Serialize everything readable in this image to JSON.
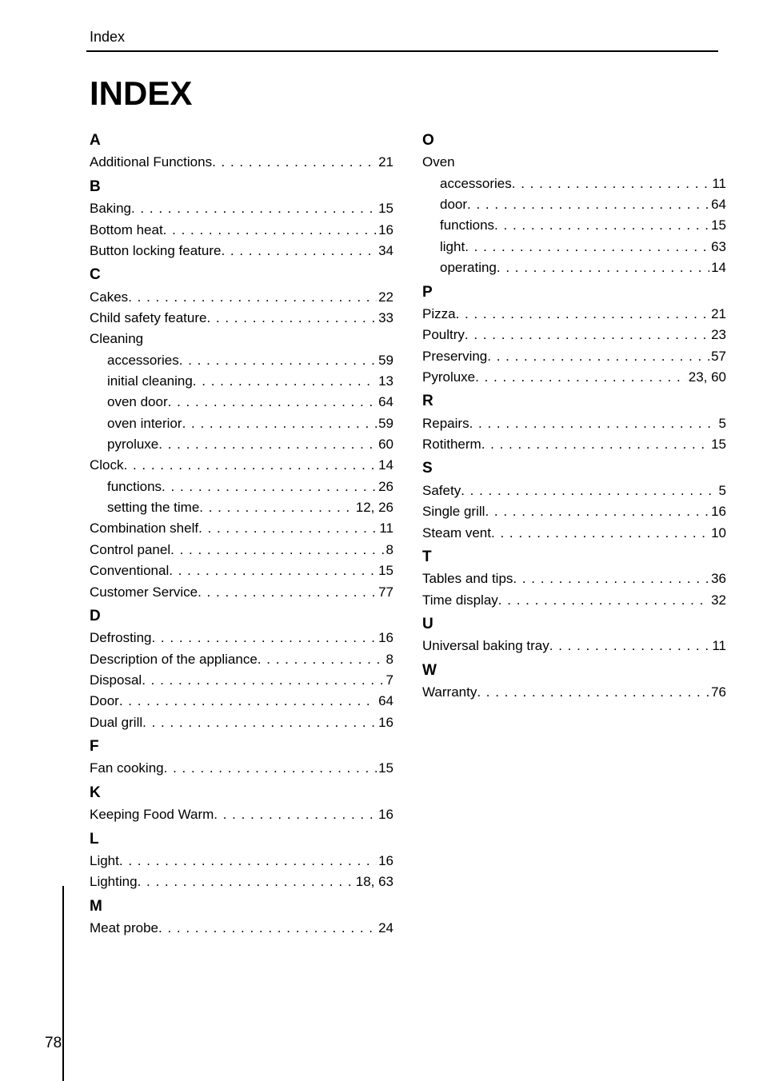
{
  "running_head": "Index",
  "title": "INDEX",
  "page_number": "78",
  "left": {
    "A": {
      "letter": "A",
      "items": [
        {
          "label": "Additional Functions",
          "page": "21"
        }
      ]
    },
    "B": {
      "letter": "B",
      "items": [
        {
          "label": "Baking",
          "page": "15"
        },
        {
          "label": "Bottom heat",
          "page": "16"
        },
        {
          "label": "Button locking feature",
          "page": "34"
        }
      ]
    },
    "C": {
      "letter": "C",
      "items": [
        {
          "label": "Cakes",
          "page": "22"
        },
        {
          "label": "Child safety feature",
          "page": "33"
        },
        {
          "label": "Cleaning",
          "page": "",
          "nodots": true
        },
        {
          "label": "accessories",
          "page": "59",
          "indent": true
        },
        {
          "label": "initial cleaning",
          "page": "13",
          "indent": true
        },
        {
          "label": "oven door",
          "page": "64",
          "indent": true
        },
        {
          "label": "oven interior",
          "page": "59",
          "indent": true
        },
        {
          "label": "pyroluxe",
          "page": "60",
          "indent": true
        },
        {
          "label": "Clock",
          "page": "14"
        },
        {
          "label": "functions",
          "page": "26",
          "indent": true
        },
        {
          "label": "setting the time",
          "page": "12, 26",
          "indent": true
        },
        {
          "label": "Combination shelf",
          "page": "11"
        },
        {
          "label": "Control panel",
          "page": "8"
        },
        {
          "label": "Conventional",
          "page": "15"
        },
        {
          "label": "Customer Service",
          "page": "77"
        }
      ]
    },
    "D": {
      "letter": "D",
      "items": [
        {
          "label": "Defrosting",
          "page": "16"
        },
        {
          "label": "Description of the appliance",
          "page": "8"
        },
        {
          "label": "Disposal",
          "page": "7"
        },
        {
          "label": "Door",
          "page": "64"
        },
        {
          "label": "Dual grill",
          "page": "16"
        }
      ]
    },
    "F": {
      "letter": "F",
      "items": [
        {
          "label": "Fan cooking",
          "page": "15"
        }
      ]
    },
    "K": {
      "letter": "K",
      "items": [
        {
          "label": "Keeping Food Warm",
          "page": "16"
        }
      ]
    },
    "L": {
      "letter": "L",
      "items": [
        {
          "label": "Light",
          "page": "16"
        },
        {
          "label": "Lighting",
          "page": "18, 63"
        }
      ]
    },
    "M": {
      "letter": "M",
      "items": [
        {
          "label": "Meat probe",
          "page": "24"
        }
      ]
    }
  },
  "right": {
    "O": {
      "letter": "O",
      "items": [
        {
          "label": "Oven",
          "page": "",
          "nodots": true
        },
        {
          "label": "accessories",
          "page": "11",
          "indent": true
        },
        {
          "label": "door",
          "page": "64",
          "indent": true
        },
        {
          "label": "functions",
          "page": "15",
          "indent": true
        },
        {
          "label": "light",
          "page": "63",
          "indent": true
        },
        {
          "label": "operating",
          "page": "14",
          "indent": true
        }
      ]
    },
    "P": {
      "letter": "P",
      "items": [
        {
          "label": "Pizza",
          "page": "21"
        },
        {
          "label": "Poultry",
          "page": "23"
        },
        {
          "label": "Preserving",
          "page": "57"
        },
        {
          "label": "Pyroluxe",
          "page": "23, 60"
        }
      ]
    },
    "R": {
      "letter": "R",
      "items": [
        {
          "label": "Repairs",
          "page": "5"
        },
        {
          "label": "Rotitherm",
          "page": "15"
        }
      ]
    },
    "S": {
      "letter": "S",
      "items": [
        {
          "label": "Safety",
          "page": "5"
        },
        {
          "label": "Single grill",
          "page": "16"
        },
        {
          "label": "Steam vent",
          "page": "10"
        }
      ]
    },
    "T": {
      "letter": "T",
      "items": [
        {
          "label": "Tables and tips",
          "page": "36"
        },
        {
          "label": "Time display",
          "page": "32"
        }
      ]
    },
    "U": {
      "letter": "U",
      "items": [
        {
          "label": "Universal baking tray",
          "page": "11"
        }
      ]
    },
    "W": {
      "letter": "W",
      "items": [
        {
          "label": "Warranty",
          "page": "76"
        }
      ]
    }
  }
}
